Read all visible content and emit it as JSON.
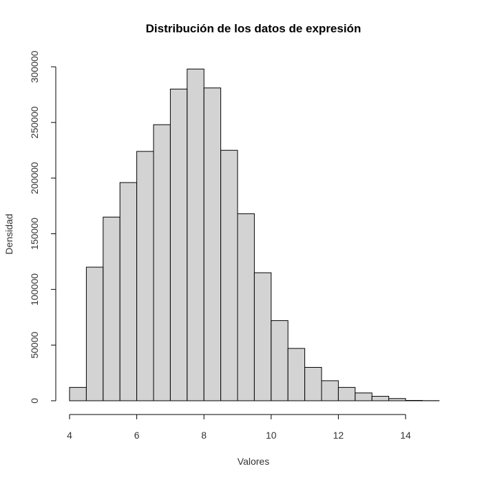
{
  "chart_data": {
    "type": "bar",
    "title": "Distribución de los datos de expresión",
    "xlabel": "Valores",
    "ylabel": "Densidad",
    "bin_edges": [
      4.0,
      4.5,
      5.0,
      5.5,
      6.0,
      6.5,
      7.0,
      7.5,
      8.0,
      8.5,
      9.0,
      9.5,
      10.0,
      10.5,
      11.0,
      11.5,
      12.0,
      12.5,
      13.0,
      13.5,
      14.0,
      14.5,
      15.0
    ],
    "values": [
      12000,
      120000,
      165000,
      196000,
      224000,
      248000,
      280000,
      298000,
      281000,
      225000,
      168000,
      115000,
      72000,
      47000,
      30000,
      18000,
      12000,
      7000,
      4000,
      2000,
      300,
      100
    ],
    "xlim": [
      4,
      15
    ],
    "ylim": [
      0,
      300000
    ],
    "x_ticks": [
      4,
      6,
      8,
      10,
      12,
      14
    ],
    "x_tick_labels": [
      "4",
      "6",
      "8",
      "10",
      "12",
      "14"
    ],
    "y_ticks": [
      0,
      50000,
      100000,
      150000,
      200000,
      250000,
      300000
    ],
    "y_tick_labels": [
      "0",
      "50000",
      "100000",
      "150000",
      "200000",
      "250000",
      "300000"
    ],
    "bar_fill": "#d3d3d3",
    "bar_stroke": "#000000",
    "grid": false
  }
}
